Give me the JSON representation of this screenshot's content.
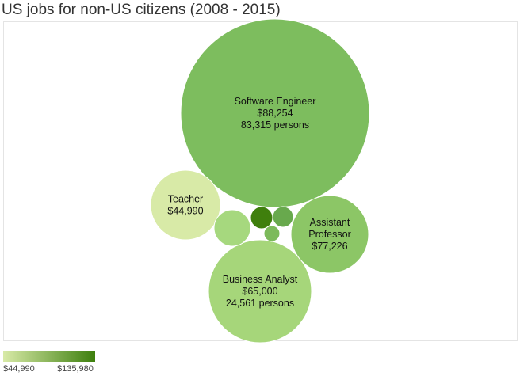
{
  "chart_data": {
    "type": "bubble",
    "title": "US jobs for non-US citizens (2008 - 2015)",
    "color_scale": {
      "min_label": "$44,990",
      "max_label": "$135,980",
      "min": 44990,
      "max": 135980,
      "min_color": "#d8eaa7",
      "max_color": "#3d7f0d"
    },
    "bubbles": [
      {
        "name": "Software Engineer",
        "salary": 88254,
        "salary_label": "$88,254",
        "persons": 83315,
        "persons_label": "83,315 persons",
        "lines": [
          "Software Engineer",
          "$88,254",
          "83,315 persons"
        ],
        "color": "#7dbd5e"
      },
      {
        "name": "Teacher",
        "salary": 44990,
        "salary_label": "$44,990",
        "lines": [
          "Teacher",
          "$44,990"
        ],
        "color": "#d8eaa7"
      },
      {
        "name": "Business Analyst",
        "salary": 65000,
        "salary_label": "$65,000",
        "persons": 24561,
        "persons_label": "24,561 persons",
        "lines": [
          "Business Analyst",
          "$65,000",
          "24,561 persons"
        ],
        "color": "#a6d67a"
      },
      {
        "name": "Assistant Professor",
        "salary": 77226,
        "salary_label": "$77,226",
        "lines": [
          "Assistant",
          "Professor",
          "$77,226"
        ],
        "color": "#8cc666"
      },
      {
        "name": "",
        "lines": [],
        "color": "#a6d87e"
      },
      {
        "name": "",
        "lines": [],
        "color": "#3f7f0d"
      },
      {
        "name": "",
        "lines": [],
        "color": "#68a94d"
      },
      {
        "name": "",
        "lines": [],
        "color": "#7cba5b"
      }
    ]
  }
}
